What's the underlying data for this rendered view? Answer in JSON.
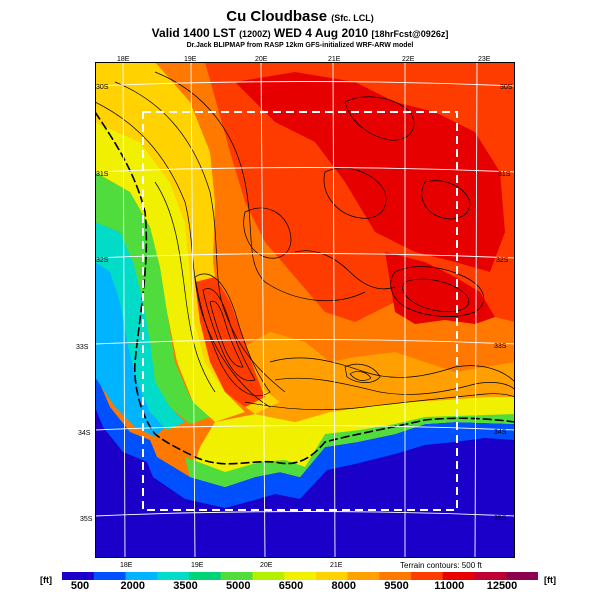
{
  "header": {
    "title": "Cu Cloudbase",
    "title_suffix": "(Sfc. LCL)",
    "valid_line": "Valid 1400 LST",
    "valid_detail": "(1200Z)",
    "valid_date": "WED 4 Aug 2010",
    "forecast_detail": "[18hrFcst@0926z]",
    "credit": "Dr.Jack BLIPMAP from RASP 12km GFS-initialized WRF-ARW model"
  },
  "map": {
    "lon_labels_top": [
      "18E",
      "19E",
      "20E",
      "21E",
      "22E",
      "23E"
    ],
    "lon_labels_bottom": [
      "18E",
      "19E",
      "20E",
      "21E"
    ],
    "lat_labels_left": [
      "30S",
      "31S",
      "32S",
      "33S",
      "34S",
      "35S"
    ],
    "lat_labels_right": [
      "30S",
      "31S",
      "32S",
      "33S",
      "34S",
      "35S"
    ],
    "terrain_note": "Terrain contours: 500 ft"
  },
  "colorbar": {
    "unit_left": "[ft]",
    "unit_right": "[ft]",
    "labels": [
      "500",
      "2000",
      "3500",
      "5000",
      "6500",
      "8000",
      "9500",
      "11000",
      "12500"
    ],
    "colors": [
      "#1a00c8",
      "#0050ff",
      "#00b4ff",
      "#00dcc8",
      "#00d278",
      "#50dc3c",
      "#b4f000",
      "#f0f000",
      "#ffd200",
      "#ffa000",
      "#ff7800",
      "#ff3c00",
      "#e60000",
      "#be0032",
      "#8c0050"
    ]
  }
}
